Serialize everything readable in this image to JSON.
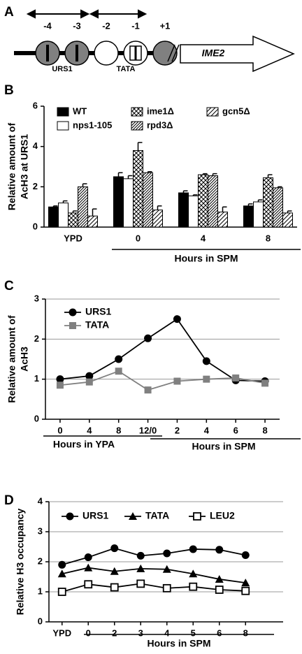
{
  "diagram": {
    "panel": "A",
    "positions": [
      "-4",
      "-3",
      "-2",
      "-1",
      "+1"
    ],
    "urs1": "URS1",
    "tata": "TATA",
    "gene": "IME2"
  },
  "chart_data": [
    {
      "type": "bar",
      "panel": "B",
      "ylabel": [
        "Relative amount of",
        "AcH3 at URS1"
      ],
      "xlabel": "Hours in SPM",
      "categories": [
        "YPD",
        "0",
        "4",
        "8"
      ],
      "ylim": [
        0,
        6
      ],
      "yticks": [
        0,
        2,
        4,
        6
      ],
      "grid": false,
      "series": [
        {
          "name": "WT",
          "color": "#000000",
          "hatch": "none",
          "values": [
            1.0,
            2.5,
            1.7,
            1.05
          ],
          "errors": [
            0.05,
            0.2,
            0.1,
            0.1
          ]
        },
        {
          "name": "nps1-105",
          "color": "#ffffff",
          "hatch": "none",
          "values": [
            1.2,
            2.4,
            1.55,
            1.25
          ],
          "errors": [
            0.1,
            0.15,
            0.05,
            0.1
          ]
        },
        {
          "name": "ime1Δ",
          "color": "#000000",
          "hatch": "cross",
          "values": [
            0.7,
            3.8,
            2.6,
            2.45
          ],
          "errors": [
            0.1,
            0.4,
            0.05,
            0.15
          ]
        },
        {
          "name": "rpd3Δ",
          "color": "#000000",
          "hatch": "dense-diagonal",
          "values": [
            2.0,
            2.7,
            2.55,
            1.95
          ],
          "errors": [
            0.15,
            0.05,
            0.1,
            0.05
          ]
        },
        {
          "name": "gcn5Δ",
          "color": "#000000",
          "hatch": "diagonal",
          "values": [
            0.55,
            0.85,
            0.75,
            0.7
          ],
          "errors": [
            0.35,
            0.2,
            0.25,
            0.1
          ]
        }
      ]
    },
    {
      "type": "line",
      "panel": "C",
      "ylabel": [
        "Relative amount of",
        "AcH3"
      ],
      "xlabels": [
        "Hours in YPA",
        "Hours in SPM"
      ],
      "categories": [
        "0",
        "4",
        "8",
        "12/0",
        "2",
        "4",
        "6",
        "8"
      ],
      "ylim": [
        0,
        3
      ],
      "yticks": [
        0,
        1,
        2,
        3
      ],
      "grid": true,
      "series": [
        {
          "name": "URS1",
          "color": "#000000",
          "marker": "circle",
          "values": [
            1.0,
            1.08,
            1.5,
            2.02,
            2.5,
            1.45,
            0.97,
            0.95
          ]
        },
        {
          "name": "TATA",
          "color": "#808080",
          "marker": "square",
          "values": [
            0.85,
            0.93,
            1.2,
            0.73,
            0.95,
            1.0,
            1.03,
            0.9
          ]
        }
      ]
    },
    {
      "type": "line",
      "panel": "D",
      "ylabel": [
        "Relative H3 occupancy"
      ],
      "xlabel": "Hours in SPM",
      "categories": [
        "YPD",
        "0",
        "2",
        "3",
        "4",
        "5",
        "6",
        "8"
      ],
      "ylim": [
        0,
        4
      ],
      "yticks": [
        0,
        1,
        2,
        3,
        4
      ],
      "grid": true,
      "series": [
        {
          "name": "URS1",
          "color": "#000000",
          "marker": "circle",
          "values": [
            1.9,
            2.15,
            2.45,
            2.2,
            2.28,
            2.42,
            2.4,
            2.22
          ]
        },
        {
          "name": "TATA",
          "color": "#000000",
          "marker": "triangle",
          "values": [
            1.6,
            1.8,
            1.68,
            1.77,
            1.75,
            1.6,
            1.42,
            1.3
          ]
        },
        {
          "name": "LEU2",
          "color": "#000000",
          "marker": "open-square",
          "values": [
            1.0,
            1.25,
            1.15,
            1.27,
            1.12,
            1.17,
            1.07,
            1.03
          ]
        }
      ]
    }
  ]
}
